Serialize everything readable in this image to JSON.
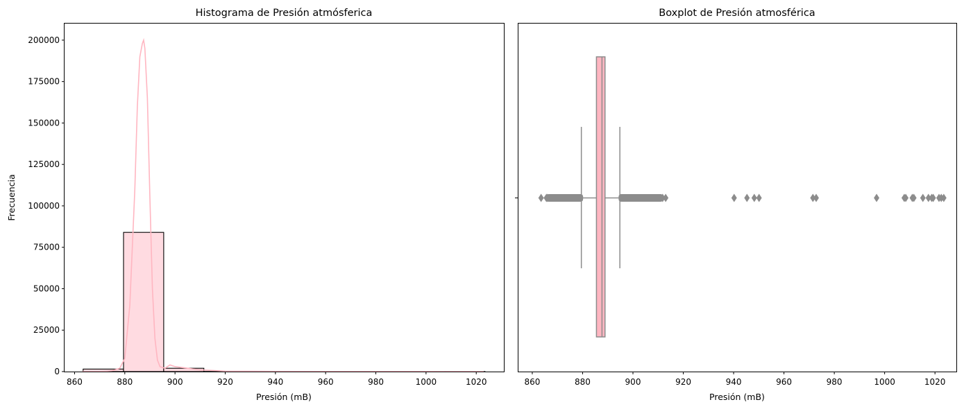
{
  "chart_data": [
    {
      "type": "bar",
      "subtype": "histogram",
      "title": "Histograma de Presión atmósferica",
      "xlabel": "Presión (mB)",
      "ylabel": "Frecuencia",
      "xlim": [
        856,
        1031
      ],
      "ylim": [
        0,
        210000
      ],
      "xticks": [
        860,
        880,
        900,
        920,
        940,
        960,
        980,
        1000,
        1020
      ],
      "yticks": [
        0,
        25000,
        50000,
        75000,
        100000,
        125000,
        150000,
        175000,
        200000
      ],
      "bins": [
        {
          "x0": 863.4,
          "x1": 879.5,
          "count": 1500
        },
        {
          "x0": 879.5,
          "x1": 895.5,
          "count": 84000
        },
        {
          "x0": 895.5,
          "x1": 911.5,
          "count": 2000
        },
        {
          "x0": 911.5,
          "x1": 927.5,
          "count": 80
        },
        {
          "x0": 927.5,
          "x1": 943.5,
          "count": 20
        },
        {
          "x0": 943.5,
          "x1": 959.5,
          "count": 10
        },
        {
          "x0": 959.5,
          "x1": 975.5,
          "count": 10
        },
        {
          "x0": 975.5,
          "x1": 991.5,
          "count": 5
        },
        {
          "x0": 991.5,
          "x1": 1007.5,
          "count": 5
        },
        {
          "x0": 1007.5,
          "x1": 1023.5,
          "count": 20
        }
      ],
      "kde": {
        "x": [
          863,
          870,
          875,
          878,
          880,
          882,
          884,
          885,
          886,
          887,
          887.5,
          888,
          889,
          890,
          891,
          892,
          893,
          894,
          896,
          898,
          900,
          905,
          910,
          920,
          940,
          960,
          980,
          1000,
          1023
        ],
        "y": [
          0,
          100,
          500,
          2000,
          8000,
          40000,
          110000,
          160000,
          190000,
          198000,
          200000,
          195000,
          165000,
          105000,
          50000,
          20000,
          7000,
          3000,
          2000,
          4000,
          3000,
          2000,
          1000,
          300,
          150,
          100,
          80,
          60,
          40
        ]
      },
      "colors": {
        "bar_fill": "#ffdbe1",
        "bar_edge": "#000000",
        "kde_line": "#ffb6c1"
      }
    },
    {
      "type": "boxplot",
      "title": "Boxplot de Presión atmosférica",
      "xlabel": "Presión (mB)",
      "xlim": [
        854.5,
        1028.5
      ],
      "xticks": [
        860,
        880,
        900,
        920,
        940,
        960,
        980,
        1000,
        1020
      ],
      "box": {
        "whisker_low": 879.5,
        "q1": 885.5,
        "median": 887.7,
        "q3": 888.9,
        "whisker_high": 894.8
      },
      "outliers_dense": [
        [
          866.5,
          879.2
        ],
        [
          895.3,
          911.0
        ]
      ],
      "outliers": [
        863.5,
        865.6,
        866.0,
        911.8,
        913.0,
        940.2,
        945.3,
        948.2,
        950.1,
        971.5,
        972.8,
        996.8,
        1007.8,
        1008.4,
        1011.0,
        1011.6,
        1015.2,
        1017.4,
        1018.7,
        1019.3,
        1021.6,
        1022.5,
        1023.5
      ],
      "colors": {
        "box_fill": "#ffb6c1",
        "line": "#8c8c8c",
        "outlier": "#8c8c8c"
      }
    }
  ]
}
